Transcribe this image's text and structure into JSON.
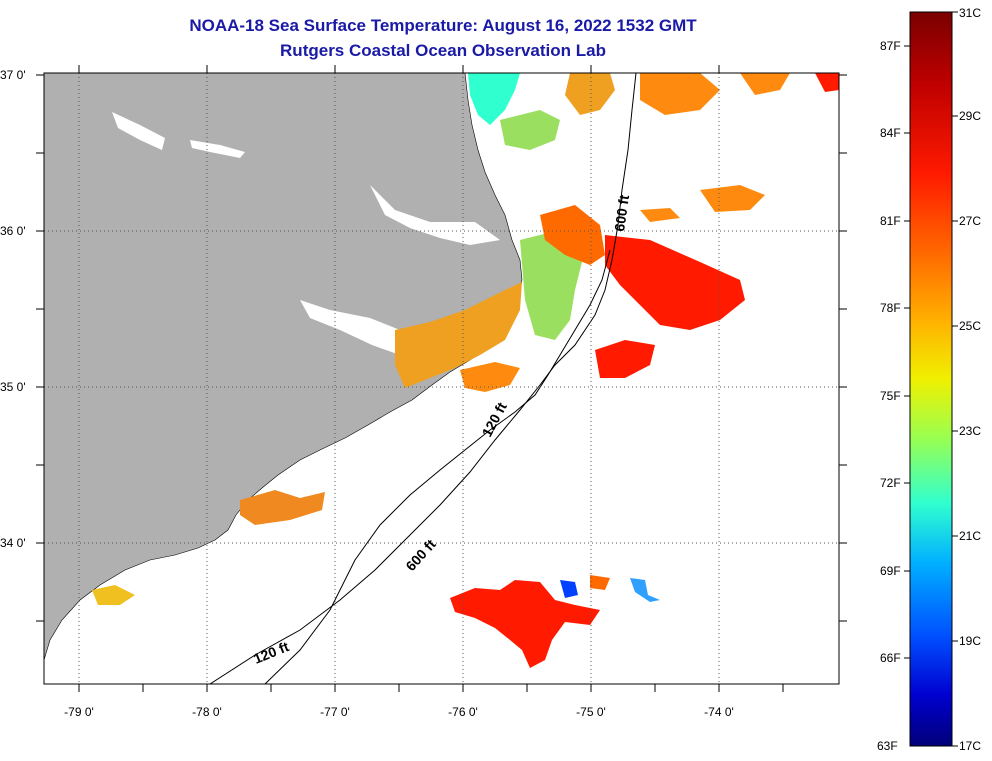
{
  "header": {
    "title": "NOAA-18 Sea Surface Temperature:  August 16, 2022 1532 GMT",
    "subtitle": "Rutgers Coastal Ocean Observation Lab"
  },
  "axes": {
    "lat_labels": [
      "37 0'",
      "36 0'",
      "35 0'",
      "34 0'"
    ],
    "lon_labels": [
      "-79 0'",
      "-78 0'",
      "-77 0'",
      "-76 0'",
      "-75 0'",
      "-74 0'"
    ]
  },
  "contours": {
    "labels": [
      "600 ft",
      "120 ft",
      "600 ft",
      "120 ft"
    ]
  },
  "colorbar": {
    "fahrenheit_labels": [
      "87F",
      "84F",
      "81F",
      "78F",
      "75F",
      "72F",
      "69F",
      "66F",
      "63F"
    ],
    "celsius_labels": [
      "31C",
      "29C",
      "27C",
      "25C",
      "23C",
      "21C",
      "19C",
      "17C"
    ],
    "colors": [
      "#7a0000",
      "#c00000",
      "#ff1a00",
      "#ff6a00",
      "#ffb000",
      "#f0f000",
      "#9aff50",
      "#30ffd0",
      "#00b0ff",
      "#0050ff",
      "#0000d0",
      "#00007a"
    ]
  },
  "colors": {
    "land": "#b0b0b0",
    "title": "#1a1aa6"
  }
}
